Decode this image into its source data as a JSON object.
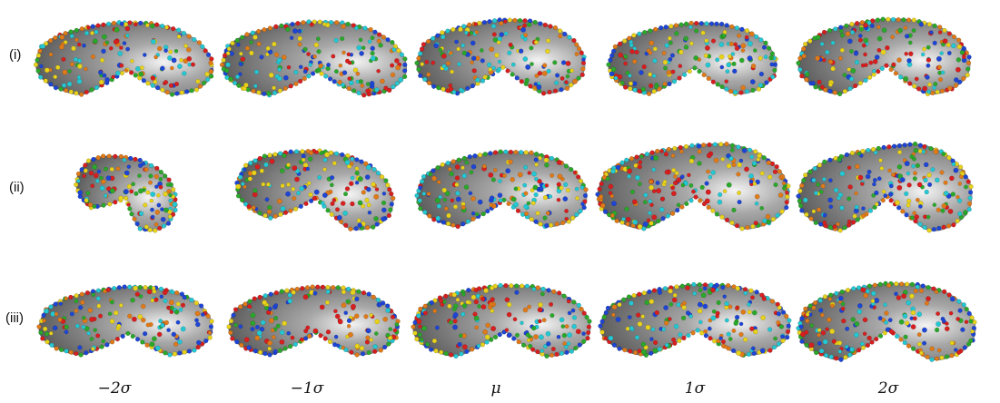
{
  "row_labels": [
    "(i)",
    "(ii)",
    "(iii)"
  ],
  "column_labels": [
    "−2σ",
    "−1σ",
    "μ",
    "1σ",
    "2σ"
  ],
  "landmark_colors": [
    "#d81e1e",
    "#2aa82a",
    "#1d45d6",
    "#e8d21a",
    "#24c8d2",
    "#e07a18"
  ],
  "surface_colors": {
    "light": "#f4f4f4",
    "mid": "#a8a8a8",
    "dark": "#5a5a5a"
  }
}
